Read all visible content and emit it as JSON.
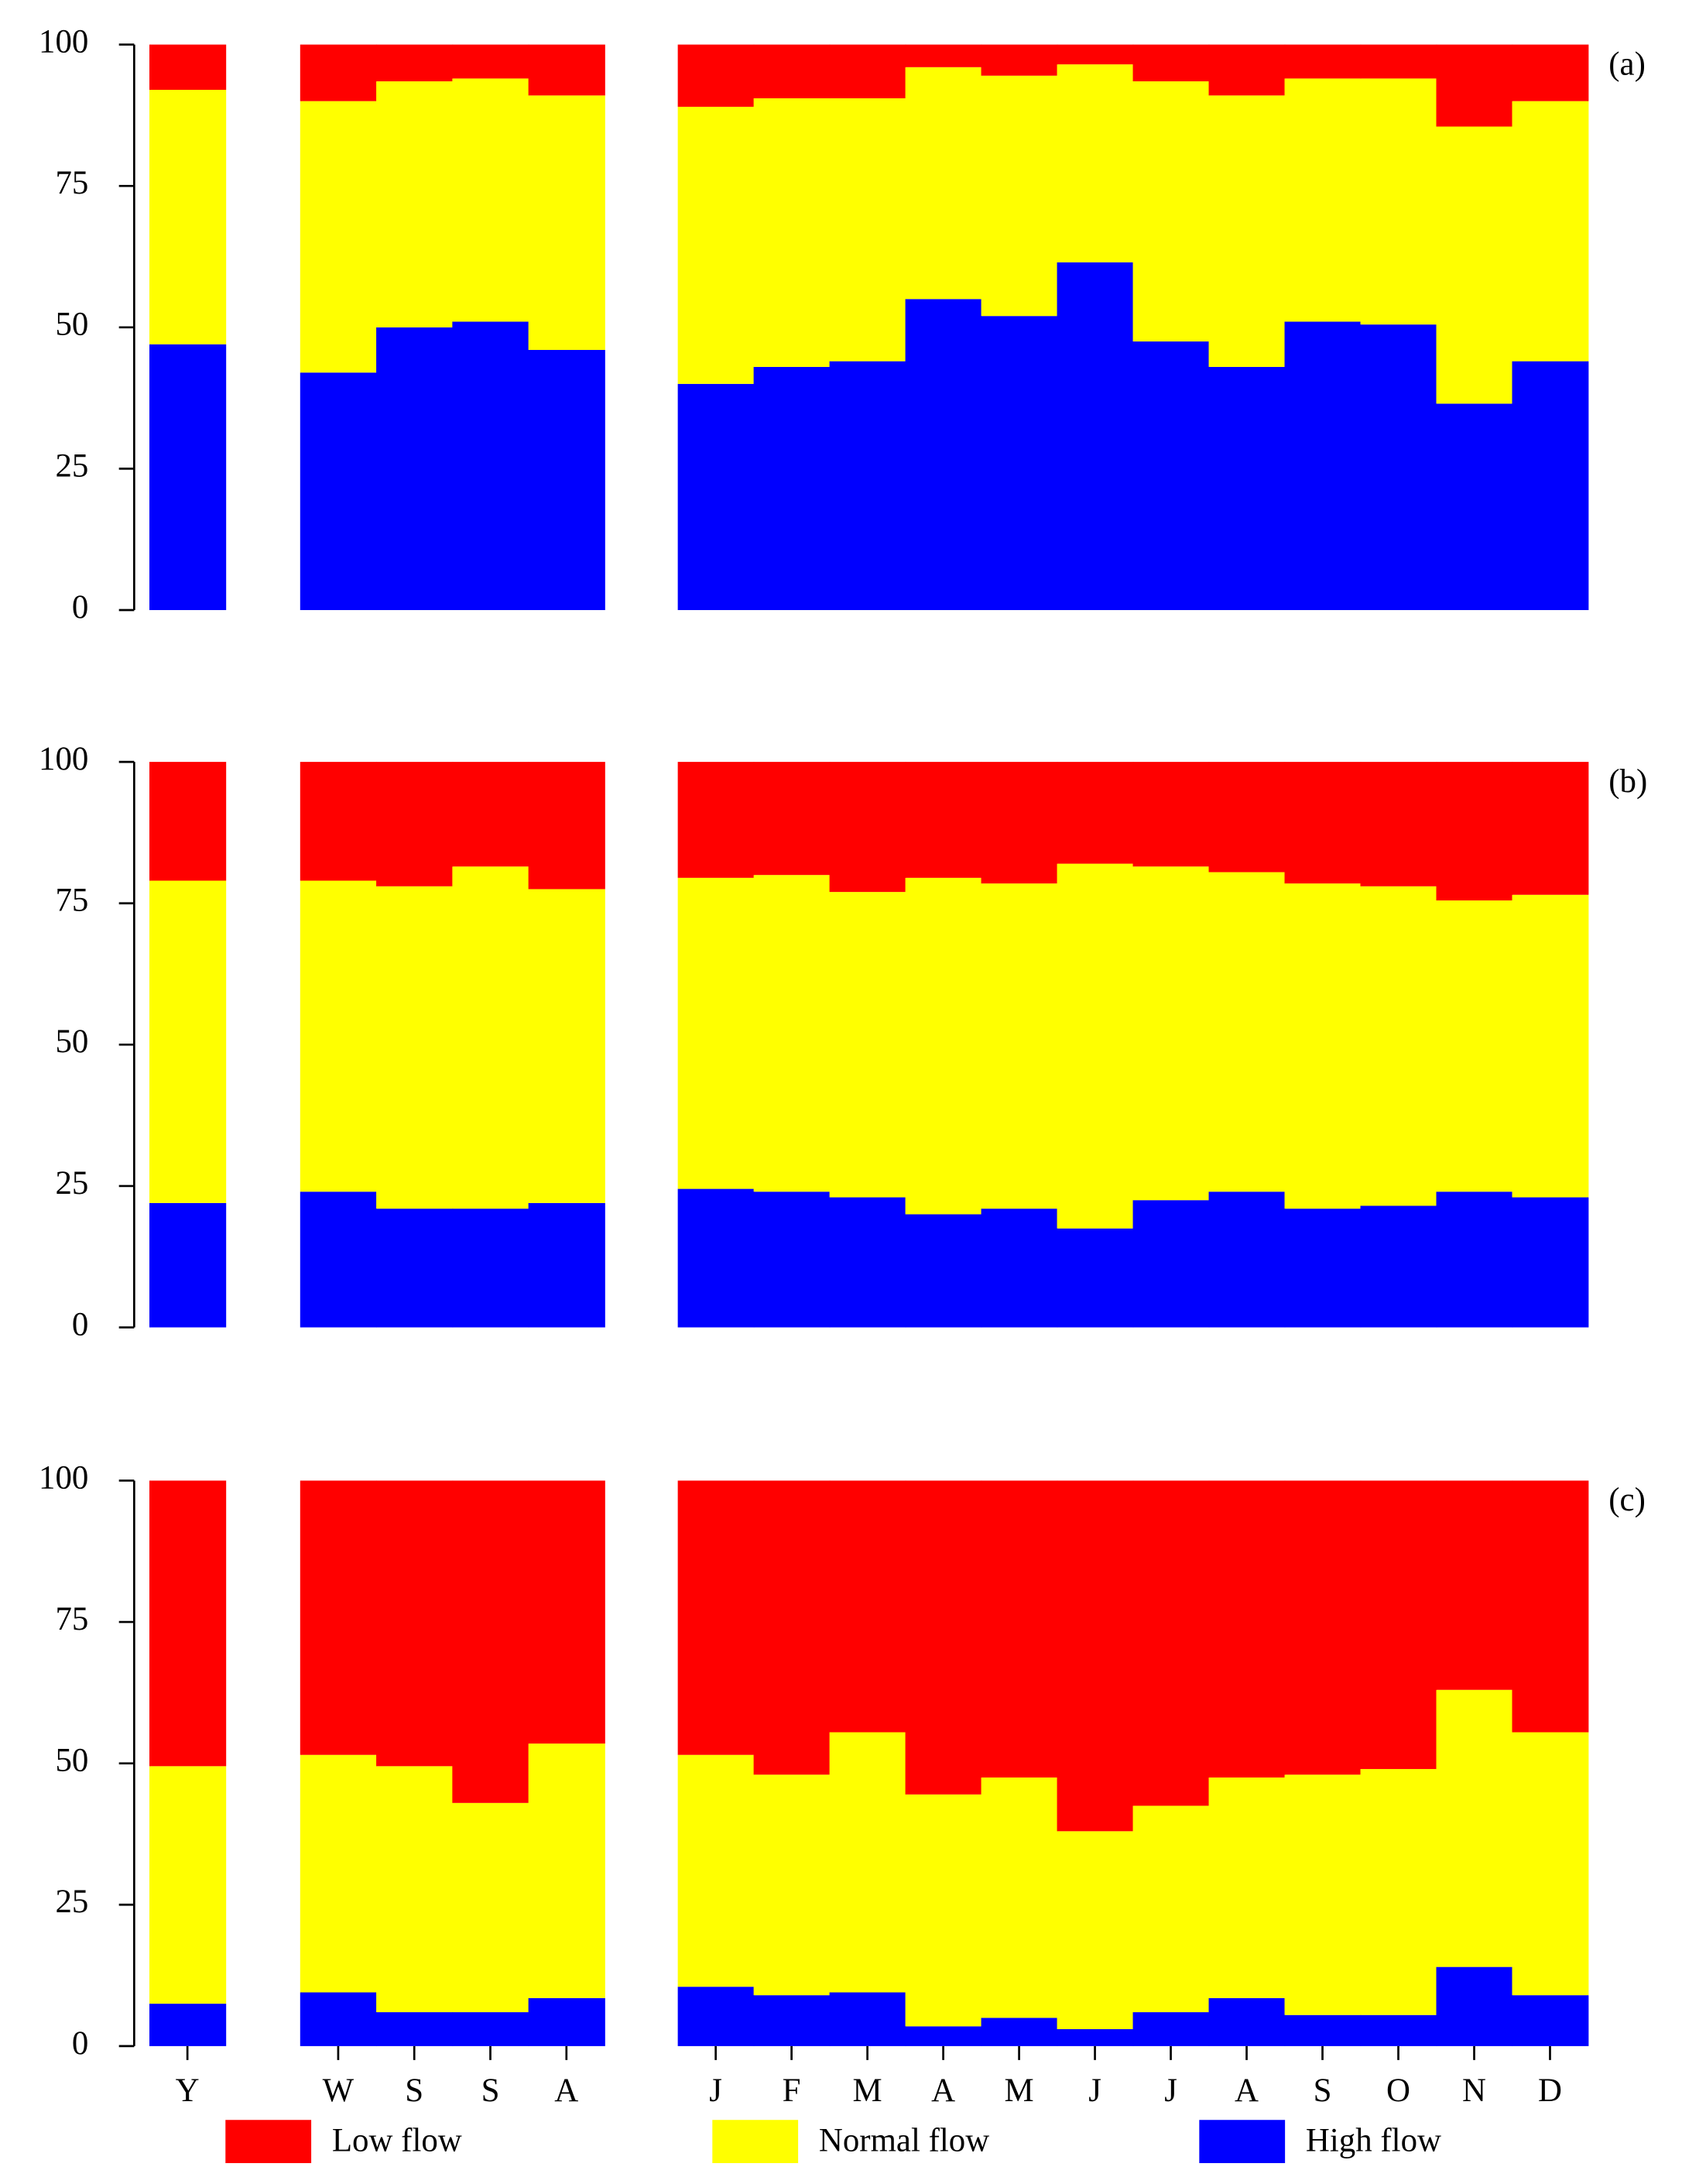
{
  "chart_data": [
    {
      "type": "stacked-bar",
      "label": "(a)",
      "ylim": [
        0,
        100
      ],
      "yticks": [
        0,
        25,
        50,
        75,
        100
      ],
      "series": [
        {
          "color": "#ff0000",
          "values": [
            8,
            10,
            6.5,
            6,
            9,
            11,
            9.5,
            9.5,
            4,
            5.5,
            3.5,
            6.5,
            9,
            6,
            6,
            14.5,
            10
          ]
        },
        {
          "color": "#ffff00",
          "values": [
            45,
            48,
            43.5,
            43,
            45,
            49,
            47.5,
            46.5,
            41,
            42.5,
            35,
            46,
            48,
            43,
            43.5,
            49,
            46
          ]
        },
        {
          "color": "#0000ff",
          "values": [
            47,
            42,
            50,
            51,
            46,
            40,
            43,
            44,
            55,
            52,
            61.5,
            47.5,
            43,
            51,
            50.5,
            36.5,
            44
          ]
        }
      ]
    },
    {
      "type": "stacked-bar",
      "label": "(b)",
      "ylim": [
        0,
        100
      ],
      "yticks": [
        0,
        25,
        50,
        75,
        100
      ],
      "series": [
        {
          "color": "#ff0000",
          "values": [
            21,
            21,
            22,
            18.5,
            22.5,
            20.5,
            20,
            23,
            20.5,
            21.5,
            18,
            18.5,
            19.5,
            21.5,
            22,
            24.5,
            23.5
          ]
        },
        {
          "color": "#ffff00",
          "values": [
            57,
            55,
            57,
            60.5,
            55.5,
            55,
            56,
            54,
            59.5,
            57.5,
            64.5,
            59,
            56.5,
            57.5,
            56.5,
            51.5,
            53.5
          ]
        },
        {
          "color": "#0000ff",
          "values": [
            22,
            24,
            21,
            21,
            22,
            24.5,
            24,
            23,
            20,
            21,
            17.5,
            22.5,
            24,
            21,
            21.5,
            24,
            23
          ]
        }
      ]
    },
    {
      "type": "stacked-bar",
      "label": "(c)",
      "ylim": [
        0,
        100
      ],
      "yticks": [
        0,
        25,
        50,
        75,
        100
      ],
      "categories": [
        "Y",
        "W",
        "S",
        "S",
        "A",
        "J",
        "F",
        "M",
        "A",
        "M",
        "J",
        "J",
        "A",
        "S",
        "O",
        "N",
        "D"
      ],
      "series": [
        {
          "name": "Low flow",
          "color": "#ff0000",
          "values": [
            50.5,
            48.5,
            50.5,
            57,
            46.5,
            48.5,
            52,
            44.5,
            55.5,
            52.5,
            62,
            57.5,
            52.5,
            52,
            51,
            37,
            44.5
          ]
        },
        {
          "name": "Normal flow",
          "color": "#ffff00",
          "values": [
            42,
            42,
            43.5,
            37,
            45,
            41,
            39,
            46,
            41,
            42.5,
            35,
            36.5,
            39,
            42.5,
            43.5,
            49,
            46.5
          ]
        },
        {
          "name": "High flow",
          "color": "#0000ff",
          "values": [
            7.5,
            9.5,
            6,
            6,
            8.5,
            10.5,
            9,
            9.5,
            3.5,
            5,
            3,
            6,
            8.5,
            5.5,
            5.5,
            14,
            9
          ]
        }
      ]
    }
  ]
}
